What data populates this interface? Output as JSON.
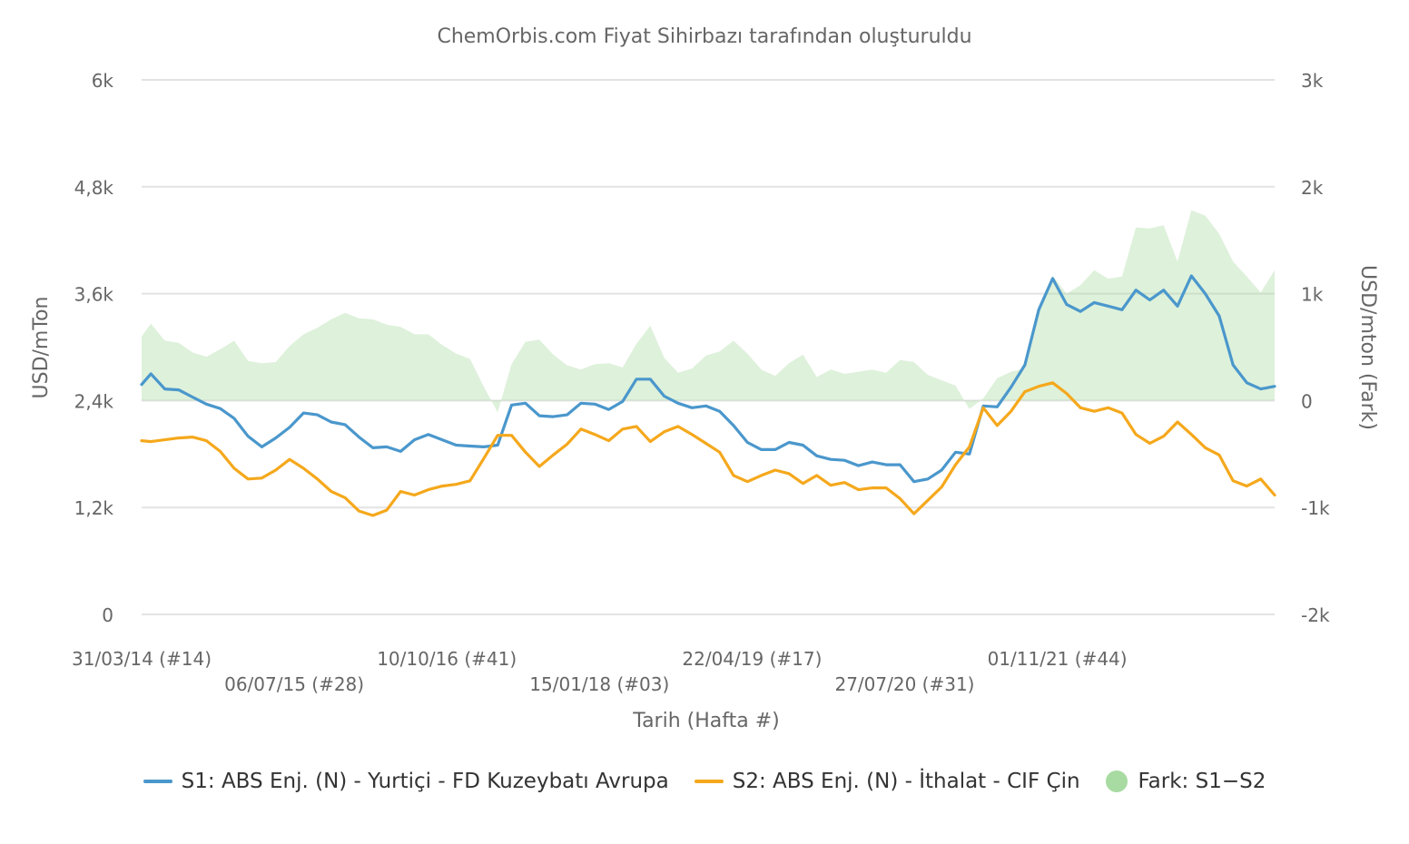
{
  "chart_data": {
    "type": "line",
    "title": "ChemOrbis.com Fiyat Sihirbazı tarafından oluşturuldu",
    "xlabel": "Tarih (Hafta #)",
    "ylabel": "USD/mTon",
    "y2label": "USD/mton (Fark)",
    "ylim": [
      0,
      6000
    ],
    "y2lim": [
      -2000,
      3000
    ],
    "yticks": [
      "0",
      "1,2k",
      "2,4k",
      "3,6k",
      "4,8k",
      "6k"
    ],
    "y2ticks": [
      "-2k",
      "-1k",
      "0",
      "1k",
      "2k",
      "3k"
    ],
    "xticks": [
      "31/03/14 (#14)",
      "06/07/15 (#28)",
      "10/10/16 (#41)",
      "15/01/18 (#03)",
      "22/04/19 (#17)",
      "27/07/20 (#31)",
      "01/11/21 (#44)"
    ],
    "grid": true,
    "legend_position": "bottom",
    "x_start": "31/03/14",
    "x_end": "21/08/23",
    "series": [
      {
        "name": "S1: ABS Enj. (N) - Yurtiçi - FD Kuzeybatı Avrupa",
        "color": "#4a97cc",
        "axis": "left",
        "points": [
          [
            "31/03/14",
            2580
          ],
          [
            "28/04/14",
            2700
          ],
          [
            "09/06/14",
            2530
          ],
          [
            "21/07/14",
            2520
          ],
          [
            "01/09/14",
            2440
          ],
          [
            "13/10/14",
            2360
          ],
          [
            "24/11/14",
            2310
          ],
          [
            "05/01/15",
            2200
          ],
          [
            "16/02/15",
            2000
          ],
          [
            "30/03/15",
            1880
          ],
          [
            "11/05/15",
            1980
          ],
          [
            "22/06/15",
            2100
          ],
          [
            "03/08/15",
            2260
          ],
          [
            "14/09/15",
            2240
          ],
          [
            "26/10/15",
            2160
          ],
          [
            "07/12/15",
            2130
          ],
          [
            "18/01/16",
            1990
          ],
          [
            "29/02/16",
            1870
          ],
          [
            "11/04/16",
            1880
          ],
          [
            "23/05/16",
            1830
          ],
          [
            "04/07/16",
            1960
          ],
          [
            "15/08/16",
            2020
          ],
          [
            "26/09/16",
            1960
          ],
          [
            "07/11/16",
            1900
          ],
          [
            "19/12/16",
            1890
          ],
          [
            "30/01/17",
            1880
          ],
          [
            "13/03/17",
            1900
          ],
          [
            "24/04/17",
            2350
          ],
          [
            "05/06/17",
            2370
          ],
          [
            "17/07/17",
            2230
          ],
          [
            "28/08/17",
            2220
          ],
          [
            "09/10/17",
            2240
          ],
          [
            "20/11/17",
            2370
          ],
          [
            "01/01/18",
            2360
          ],
          [
            "12/02/18",
            2300
          ],
          [
            "26/03/18",
            2390
          ],
          [
            "07/05/18",
            2640
          ],
          [
            "18/06/18",
            2640
          ],
          [
            "30/07/18",
            2450
          ],
          [
            "10/09/18",
            2370
          ],
          [
            "22/10/18",
            2320
          ],
          [
            "03/12/18",
            2340
          ],
          [
            "14/01/19",
            2280
          ],
          [
            "25/02/19",
            2120
          ],
          [
            "08/04/19",
            1930
          ],
          [
            "20/05/19",
            1850
          ],
          [
            "01/07/19",
            1850
          ],
          [
            "12/08/19",
            1930
          ],
          [
            "23/09/19",
            1900
          ],
          [
            "04/11/19",
            1780
          ],
          [
            "16/12/19",
            1740
          ],
          [
            "27/01/20",
            1730
          ],
          [
            "09/03/20",
            1670
          ],
          [
            "20/04/20",
            1710
          ],
          [
            "01/06/20",
            1680
          ],
          [
            "13/07/20",
            1680
          ],
          [
            "24/08/20",
            1490
          ],
          [
            "05/10/20",
            1520
          ],
          [
            "16/11/20",
            1620
          ],
          [
            "28/12/20",
            1820
          ],
          [
            "08/02/21",
            1800
          ],
          [
            "22/03/21",
            2340
          ],
          [
            "03/05/21",
            2330
          ],
          [
            "14/06/21",
            2550
          ],
          [
            "26/07/21",
            2800
          ],
          [
            "06/09/21",
            3420
          ],
          [
            "18/10/21",
            3770
          ],
          [
            "29/11/21",
            3480
          ],
          [
            "10/01/22",
            3400
          ],
          [
            "21/02/22",
            3500
          ],
          [
            "04/04/22",
            3460
          ],
          [
            "16/05/22",
            3420
          ],
          [
            "27/06/22",
            3640
          ],
          [
            "08/08/22",
            3530
          ],
          [
            "19/09/22",
            3640
          ],
          [
            "31/10/22",
            3460
          ],
          [
            "12/12/22",
            3800
          ],
          [
            "23/01/23",
            3600
          ],
          [
            "06/03/23",
            3350
          ],
          [
            "17/04/23",
            2800
          ],
          [
            "29/05/23",
            2600
          ],
          [
            "10/07/23",
            2530
          ],
          [
            "21/08/23",
            2560
          ]
        ]
      },
      {
        "name": "S2: ABS Enj. (N) - İthalat - CIF Çin",
        "color": "#f5a81c",
        "axis": "left",
        "points": [
          [
            "31/03/14",
            1950
          ],
          [
            "28/04/14",
            1940
          ],
          [
            "09/06/14",
            1960
          ],
          [
            "21/07/14",
            1980
          ],
          [
            "01/09/14",
            1990
          ],
          [
            "13/10/14",
            1950
          ],
          [
            "24/11/14",
            1830
          ],
          [
            "05/01/15",
            1640
          ],
          [
            "16/02/15",
            1520
          ],
          [
            "30/03/15",
            1530
          ],
          [
            "11/05/15",
            1620
          ],
          [
            "22/06/15",
            1740
          ],
          [
            "03/08/15",
            1640
          ],
          [
            "14/09/15",
            1520
          ],
          [
            "26/10/15",
            1380
          ],
          [
            "07/12/15",
            1310
          ],
          [
            "18/01/16",
            1160
          ],
          [
            "29/02/16",
            1110
          ],
          [
            "11/04/16",
            1170
          ],
          [
            "23/05/16",
            1380
          ],
          [
            "04/07/16",
            1340
          ],
          [
            "15/08/16",
            1400
          ],
          [
            "26/09/16",
            1440
          ],
          [
            "07/11/16",
            1460
          ],
          [
            "19/12/16",
            1500
          ],
          [
            "30/01/17",
            1750
          ],
          [
            "13/03/17",
            2010
          ],
          [
            "24/04/17",
            2010
          ],
          [
            "05/06/17",
            1820
          ],
          [
            "17/07/17",
            1660
          ],
          [
            "28/08/17",
            1790
          ],
          [
            "09/10/17",
            1910
          ],
          [
            "20/11/17",
            2080
          ],
          [
            "01/01/18",
            2020
          ],
          [
            "12/02/18",
            1950
          ],
          [
            "26/03/18",
            2080
          ],
          [
            "07/05/18",
            2110
          ],
          [
            "18/06/18",
            1940
          ],
          [
            "30/07/18",
            2050
          ],
          [
            "10/09/18",
            2110
          ],
          [
            "22/10/18",
            2020
          ],
          [
            "03/12/18",
            1920
          ],
          [
            "14/01/19",
            1820
          ],
          [
            "25/02/19",
            1560
          ],
          [
            "08/04/19",
            1490
          ],
          [
            "20/05/19",
            1560
          ],
          [
            "01/07/19",
            1620
          ],
          [
            "12/08/19",
            1580
          ],
          [
            "23/09/19",
            1470
          ],
          [
            "04/11/19",
            1560
          ],
          [
            "16/12/19",
            1450
          ],
          [
            "27/01/20",
            1480
          ],
          [
            "09/03/20",
            1400
          ],
          [
            "20/04/20",
            1420
          ],
          [
            "01/06/20",
            1420
          ],
          [
            "13/07/20",
            1300
          ],
          [
            "24/08/20",
            1130
          ],
          [
            "05/10/20",
            1280
          ],
          [
            "16/11/20",
            1430
          ],
          [
            "28/12/20",
            1680
          ],
          [
            "08/02/21",
            1880
          ],
          [
            "22/03/21",
            2320
          ],
          [
            "03/05/21",
            2120
          ],
          [
            "14/06/21",
            2280
          ],
          [
            "26/07/21",
            2500
          ],
          [
            "06/09/21",
            2560
          ],
          [
            "18/10/21",
            2600
          ],
          [
            "29/11/21",
            2480
          ],
          [
            "10/01/22",
            2320
          ],
          [
            "21/02/22",
            2280
          ],
          [
            "04/04/22",
            2320
          ],
          [
            "16/05/22",
            2260
          ],
          [
            "27/06/22",
            2020
          ],
          [
            "08/08/22",
            1920
          ],
          [
            "19/09/22",
            2000
          ],
          [
            "31/10/22",
            2160
          ],
          [
            "12/12/22",
            2020
          ],
          [
            "23/01/23",
            1870
          ],
          [
            "06/03/23",
            1790
          ],
          [
            "17/04/23",
            1500
          ],
          [
            "29/05/23",
            1440
          ],
          [
            "10/07/23",
            1520
          ],
          [
            "21/08/23",
            1340
          ]
        ]
      },
      {
        "name": "Fark: S1−S2",
        "color": "#a8dba1",
        "axis": "right",
        "type": "area",
        "points": [
          [
            "31/03/14",
            600
          ],
          [
            "28/04/14",
            720
          ],
          [
            "09/06/14",
            560
          ],
          [
            "21/07/14",
            540
          ],
          [
            "01/09/14",
            450
          ],
          [
            "13/10/14",
            410
          ],
          [
            "24/11/14",
            480
          ],
          [
            "05/01/15",
            560
          ],
          [
            "16/02/15",
            370
          ],
          [
            "30/03/15",
            350
          ],
          [
            "11/05/15",
            360
          ],
          [
            "22/06/15",
            510
          ],
          [
            "03/08/15",
            620
          ],
          [
            "14/09/15",
            680
          ],
          [
            "26/10/15",
            760
          ],
          [
            "07/12/15",
            820
          ],
          [
            "18/01/16",
            770
          ],
          [
            "29/02/16",
            760
          ],
          [
            "11/04/16",
            710
          ],
          [
            "23/05/16",
            690
          ],
          [
            "04/07/16",
            620
          ],
          [
            "15/08/16",
            620
          ],
          [
            "26/09/16",
            520
          ],
          [
            "07/11/16",
            440
          ],
          [
            "19/12/16",
            390
          ],
          [
            "30/01/17",
            130
          ],
          [
            "13/03/17",
            -110
          ],
          [
            "24/04/17",
            340
          ],
          [
            "05/06/17",
            550
          ],
          [
            "17/07/17",
            570
          ],
          [
            "28/08/17",
            430
          ],
          [
            "09/10/17",
            330
          ],
          [
            "20/11/17",
            290
          ],
          [
            "01/01/18",
            340
          ],
          [
            "12/02/18",
            350
          ],
          [
            "26/03/18",
            310
          ],
          [
            "07/05/18",
            530
          ],
          [
            "18/06/18",
            700
          ],
          [
            "30/07/18",
            400
          ],
          [
            "10/09/18",
            260
          ],
          [
            "22/10/18",
            300
          ],
          [
            "03/12/18",
            420
          ],
          [
            "14/01/19",
            460
          ],
          [
            "25/02/19",
            560
          ],
          [
            "08/04/19",
            440
          ],
          [
            "20/05/19",
            290
          ],
          [
            "01/07/19",
            230
          ],
          [
            "12/08/19",
            350
          ],
          [
            "23/09/19",
            430
          ],
          [
            "04/11/19",
            220
          ],
          [
            "16/12/19",
            290
          ],
          [
            "27/01/20",
            250
          ],
          [
            "09/03/20",
            270
          ],
          [
            "20/04/20",
            290
          ],
          [
            "01/06/20",
            260
          ],
          [
            "13/07/20",
            380
          ],
          [
            "24/08/20",
            360
          ],
          [
            "05/10/20",
            240
          ],
          [
            "16/11/20",
            190
          ],
          [
            "28/12/20",
            140
          ],
          [
            "08/02/21",
            -80
          ],
          [
            "22/03/21",
            20
          ],
          [
            "03/05/21",
            210
          ],
          [
            "14/06/21",
            270
          ],
          [
            "26/07/21",
            300
          ],
          [
            "06/09/21",
            860
          ],
          [
            "18/10/21",
            1170
          ],
          [
            "29/11/21",
            1000
          ],
          [
            "10/01/22",
            1080
          ],
          [
            "21/02/22",
            1220
          ],
          [
            "04/04/22",
            1140
          ],
          [
            "16/05/22",
            1160
          ],
          [
            "27/06/22",
            1620
          ],
          [
            "08/08/22",
            1610
          ],
          [
            "19/09/22",
            1640
          ],
          [
            "31/10/22",
            1300
          ],
          [
            "12/12/22",
            1780
          ],
          [
            "23/01/23",
            1730
          ],
          [
            "06/03/23",
            1560
          ],
          [
            "17/04/23",
            1300
          ],
          [
            "29/05/23",
            1160
          ],
          [
            "10/07/23",
            1010
          ],
          [
            "21/08/23",
            1220
          ]
        ]
      }
    ]
  }
}
